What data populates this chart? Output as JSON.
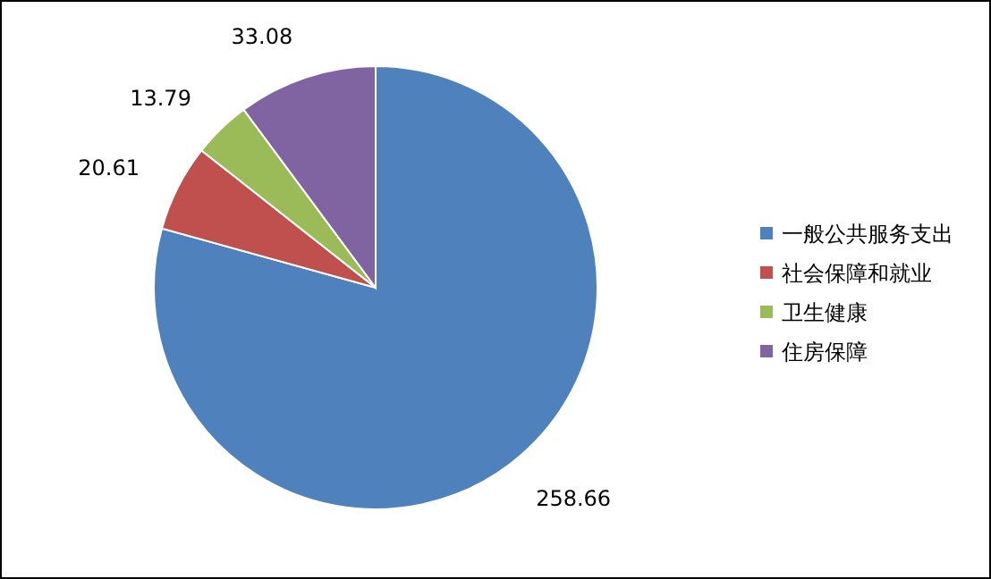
{
  "chart_data": {
    "type": "pie",
    "categories": [
      "一般公共服务支出",
      "社会保障和就业",
      "卫生健康",
      "住房保障"
    ],
    "values": [
      258.66,
      20.61,
      13.79,
      33.08
    ],
    "colors": [
      "#4f81bd",
      "#c0504d",
      "#9bbb59",
      "#8064a2"
    ],
    "data_labels": true,
    "legend": "right"
  }
}
